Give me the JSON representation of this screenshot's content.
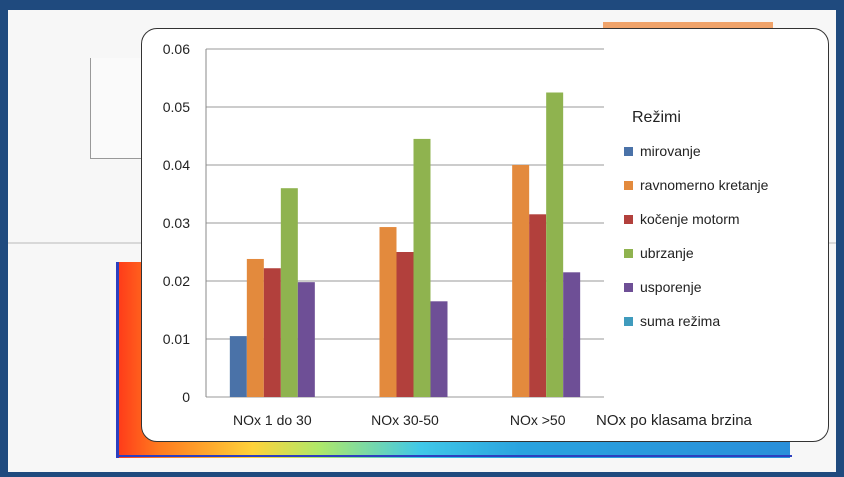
{
  "chart_data": {
    "type": "bar",
    "categories": [
      "NOx 1 do 30",
      "NOx 30-50",
      "NOx >50"
    ],
    "xlabel": "NOx po klasama brzina",
    "ylim": [
      0,
      0.06
    ],
    "yticks": [
      "0",
      "0.01",
      "0.02",
      "0.03",
      "0.04",
      "0.05",
      "0.06"
    ],
    "grid": true,
    "legend": {
      "title": "Režimi",
      "placement": "right"
    },
    "series": [
      {
        "name": "mirovanje",
        "color": "#4a72a8",
        "values": [
          0.0105,
          null,
          null
        ]
      },
      {
        "name": "ravnomerno kretanje",
        "color": "#e38a3d",
        "values": [
          0.0238,
          0.0293,
          0.04
        ]
      },
      {
        "name": "kočenje motorm",
        "color": "#b2403c",
        "values": [
          0.0222,
          0.025,
          0.0315
        ]
      },
      {
        "name": "ubrzanje",
        "color": "#8fb34f",
        "values": [
          0.036,
          0.0445,
          0.0525
        ]
      },
      {
        "name": "usporenje",
        "color": "#6e4f96",
        "values": [
          0.0198,
          0.0165,
          0.0215
        ]
      },
      {
        "name": "suma režima",
        "color": "#3f9bbd",
        "values": [
          null,
          null,
          null
        ]
      }
    ]
  }
}
